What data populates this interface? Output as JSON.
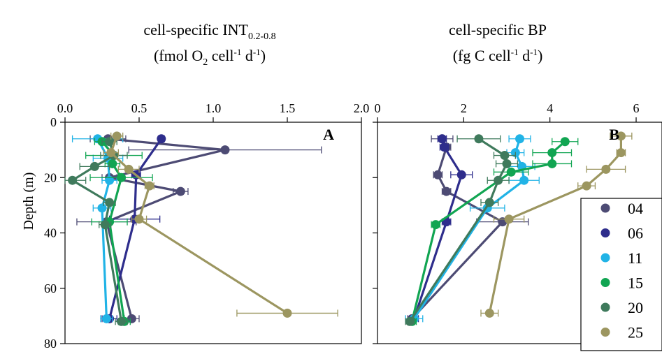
{
  "colors": {
    "04": "#4d4b74",
    "06": "#2e2d8c",
    "11": "#21b3e6",
    "15": "#11a552",
    "20": "#3f7a5c",
    "25": "#9c9660"
  },
  "chart_data": [
    {
      "type": "line",
      "title_main": "cell-specific INT",
      "title_sub": "0.2-0.8",
      "units_open": "(fmol O",
      "units_sub": "2",
      "units_mid1": " cell",
      "units_sup1": "-1",
      "units_mid2": " d",
      "units_sup2": "-1",
      "units_close": ")",
      "panel_label": "A",
      "ylabel": "Depth (m)",
      "xlim": [
        0,
        2.0
      ],
      "xticks": [
        0.0,
        0.5,
        1.0,
        1.5,
        2.0
      ],
      "xtick_labels": [
        "0.0",
        "0.5",
        "1.0",
        "1.5",
        "2.0"
      ],
      "ylim": [
        0,
        80
      ],
      "yticks": [
        0,
        20,
        40,
        60,
        80
      ],
      "ytick_labels": [
        "0",
        "20",
        "40",
        "60",
        "80"
      ],
      "series": [
        {
          "name": "04",
          "points": [
            [
              0.29,
              6,
              0.12
            ],
            [
              1.08,
              10,
              0.65
            ],
            [
              0.3,
              20,
              0.05
            ],
            [
              0.78,
              25,
              0.05
            ],
            [
              0.28,
              36,
              0.2
            ],
            [
              0.45,
              71,
              0.05
            ]
          ]
        },
        {
          "name": "06",
          "points": [
            [
              0.65,
              6,
              0.02
            ],
            [
              0.48,
              19,
              0.03
            ],
            [
              0.47,
              35,
              0.17
            ],
            [
              0.3,
              71,
              0.05
            ]
          ]
        },
        {
          "name": "11",
          "points": [
            [
              0.22,
              6,
              0.17
            ],
            [
              0.29,
              13,
              0.1
            ],
            [
              0.3,
              21,
              0.05
            ],
            [
              0.25,
              31,
              0.06
            ],
            [
              0.28,
              71,
              0.04
            ]
          ]
        },
        {
          "name": "15",
          "points": [
            [
              0.25,
              7,
              0.05
            ],
            [
              0.33,
              12,
              0.19
            ],
            [
              0.32,
              15,
              0.05
            ],
            [
              0.38,
              20,
              0.21
            ],
            [
              0.3,
              36,
              0.12
            ],
            [
              0.4,
              72,
              0.04
            ]
          ]
        },
        {
          "name": "20",
          "points": [
            [
              0.3,
              7,
              0.05
            ],
            [
              0.33,
              12,
              0.09
            ],
            [
              0.2,
              16,
              0.1
            ],
            [
              0.05,
              21,
              0.09
            ],
            [
              0.3,
              29,
              0.04
            ],
            [
              0.27,
              37,
              0.04
            ],
            [
              0.38,
              72,
              0.04
            ]
          ]
        },
        {
          "name": "25",
          "points": [
            [
              0.35,
              5,
              0.04
            ],
            [
              0.31,
              11,
              0.05
            ],
            [
              0.43,
              17,
              0.07
            ],
            [
              0.57,
              23,
              0.03
            ],
            [
              0.5,
              35,
              0.05
            ],
            [
              1.5,
              69,
              0.34
            ]
          ]
        }
      ]
    },
    {
      "type": "line",
      "title_main": "cell-specific BP",
      "units_open": "(fg C cell",
      "units_sup1": "-1",
      "units_mid2": " d",
      "units_sup2": "-1",
      "units_close": ")",
      "panel_label": "B",
      "xlim": [
        0,
        6.6
      ],
      "xticks": [
        0,
        2,
        4,
        6
      ],
      "xtick_labels": [
        "0",
        "2",
        "4",
        "6"
      ],
      "ylim": [
        0,
        80
      ],
      "yticks": [
        0,
        20,
        40,
        60,
        80
      ],
      "series": [
        {
          "name": "04",
          "points": [
            [
              1.5,
              6,
              0.25
            ],
            [
              1.6,
              9,
              0.1
            ],
            [
              1.4,
              19,
              0.1
            ],
            [
              1.6,
              25,
              0.1
            ],
            [
              2.9,
              36,
              0.6
            ],
            [
              0.8,
              71,
              0.1
            ]
          ]
        },
        {
          "name": "06",
          "points": [
            [
              1.5,
              6,
              0.1
            ],
            [
              1.55,
              9,
              0.1
            ],
            [
              1.95,
              19,
              0.25
            ],
            [
              1.6,
              36,
              0.1
            ],
            [
              0.85,
              71,
              0.1
            ]
          ]
        },
        {
          "name": "11",
          "points": [
            [
              3.3,
              6,
              0.25
            ],
            [
              3.2,
              11,
              0.2
            ],
            [
              3.35,
              16,
              0.3
            ],
            [
              3.4,
              21,
              0.35
            ],
            [
              2.55,
              31,
              0.4
            ],
            [
              0.85,
              71,
              0.2
            ]
          ]
        },
        {
          "name": "15",
          "points": [
            [
              4.35,
              7,
              0.3
            ],
            [
              4.05,
              11,
              0.45
            ],
            [
              4.05,
              15,
              0.45
            ],
            [
              3.1,
              18,
              0.4
            ],
            [
              1.35,
              37,
              0.1
            ],
            [
              0.8,
              72,
              0.1
            ]
          ]
        },
        {
          "name": "20",
          "points": [
            [
              2.35,
              6,
              0.5
            ],
            [
              2.95,
              12,
              0.25
            ],
            [
              3.0,
              15,
              0.25
            ],
            [
              2.8,
              21,
              0.25
            ],
            [
              2.6,
              29,
              0.2
            ],
            [
              0.75,
              72,
              0.1
            ]
          ]
        },
        {
          "name": "25",
          "points": [
            [
              5.65,
              5,
              0.25
            ],
            [
              5.65,
              11,
              0.1
            ],
            [
              5.3,
              17,
              0.45
            ],
            [
              4.85,
              23,
              0.2
            ],
            [
              3.05,
              35,
              0.35
            ],
            [
              2.6,
              69,
              0.2
            ]
          ]
        }
      ]
    }
  ],
  "legend": {
    "items": [
      "04",
      "06",
      "11",
      "15",
      "20",
      "25"
    ]
  }
}
